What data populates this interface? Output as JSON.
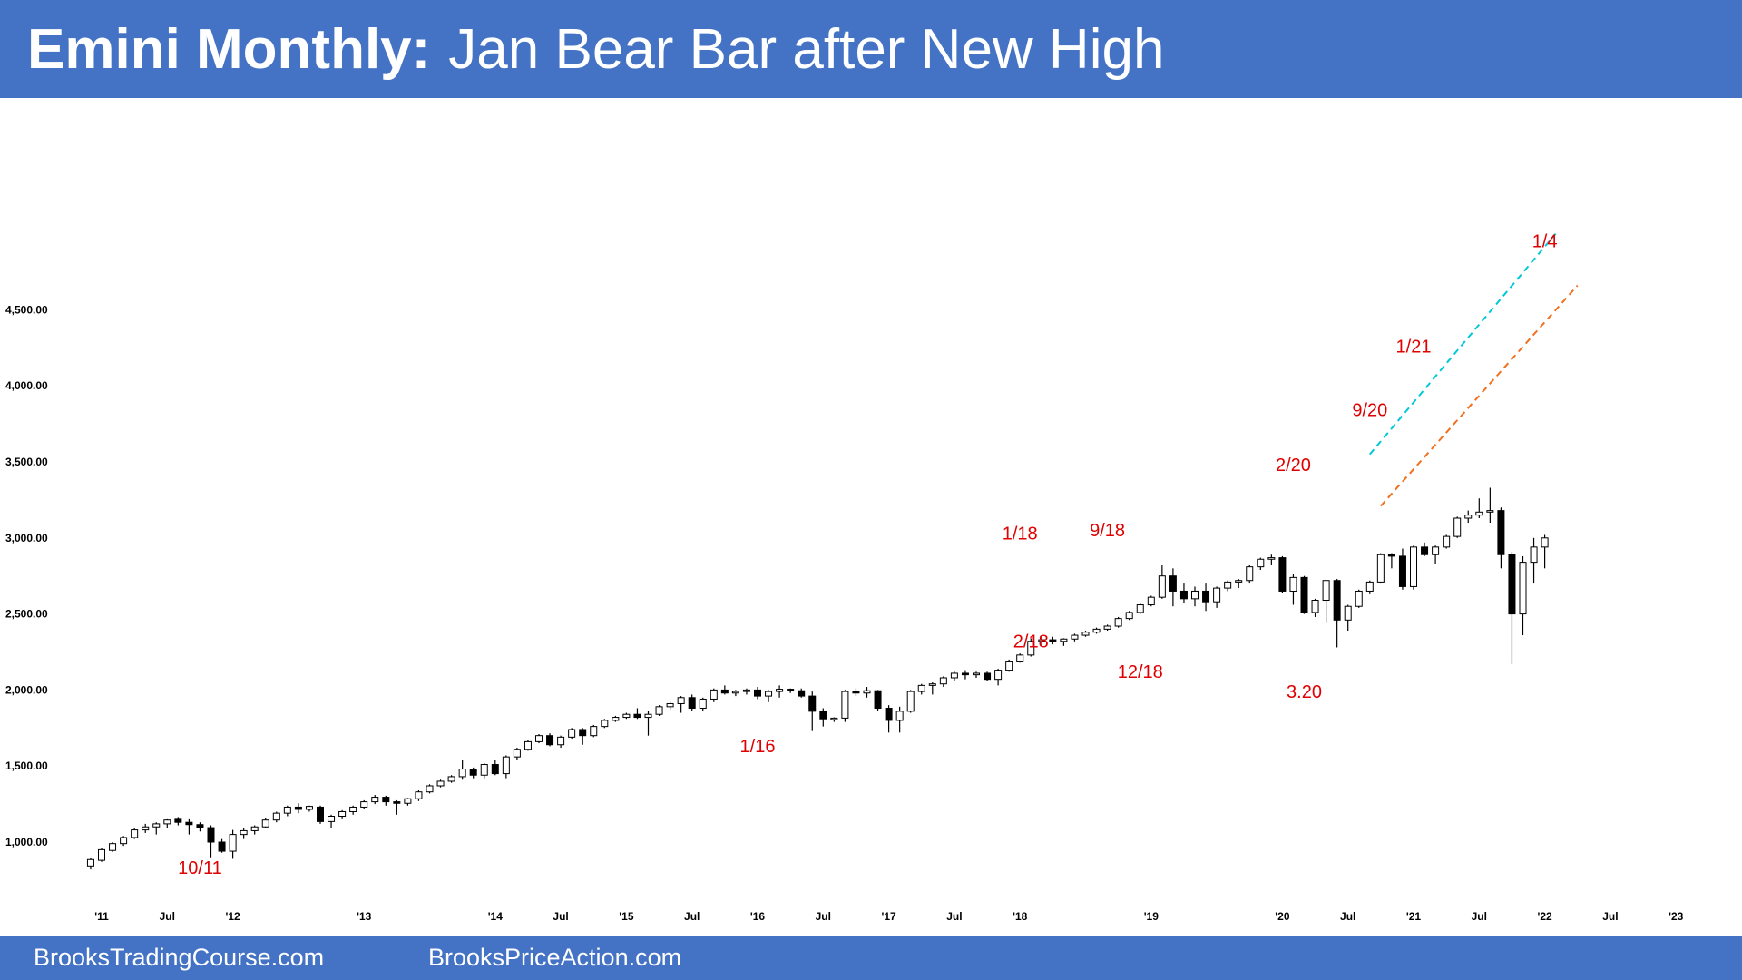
{
  "title": {
    "bold": "Emini Monthly:",
    "sub": "Jan Bear Bar after New High"
  },
  "footer": {
    "left": "BrooksTradingCourse.com",
    "right": "BrooksPriceAction.com"
  },
  "colors": {
    "banner": "#4472c4",
    "annotation": "#e00000",
    "bull_body": "#ffffff",
    "bear_body": "#000000",
    "upper_channel": "#00c8d8",
    "lower_channel": "#f07020"
  },
  "chart_data": {
    "type": "candlestick",
    "title": "Emini Monthly: Jan Bear Bar after New High",
    "x_range": [
      "2010-11",
      "2023-01"
    ],
    "ylim": [
      750,
      4950
    ],
    "y_ticks": [
      {
        "value": 1000,
        "label": "1,000.00"
      },
      {
        "value": 1500,
        "label": "1,500.00"
      },
      {
        "value": 2000,
        "label": "2,000.00"
      },
      {
        "value": 2500,
        "label": "2,500.00"
      },
      {
        "value": 3000,
        "label": "3,000.00"
      },
      {
        "value": 3500,
        "label": "3,500.00"
      },
      {
        "value": 4000,
        "label": "4,000.00"
      },
      {
        "value": 4500,
        "label": "4,500.00"
      }
    ],
    "x_ticks": [
      {
        "date": "2011-01",
        "label": "'11"
      },
      {
        "date": "2011-07",
        "label": "Jul"
      },
      {
        "date": "2012-01",
        "label": "'12"
      },
      {
        "date": "2013-01",
        "label": "'13"
      },
      {
        "date": "2014-01",
        "label": "'14"
      },
      {
        "date": "2014-07",
        "label": "Jul"
      },
      {
        "date": "2015-01",
        "label": "'15"
      },
      {
        "date": "2015-07",
        "label": "Jul"
      },
      {
        "date": "2016-01",
        "label": "'16"
      },
      {
        "date": "2016-07",
        "label": "Jul"
      },
      {
        "date": "2017-01",
        "label": "'17"
      },
      {
        "date": "2017-07",
        "label": "Jul"
      },
      {
        "date": "2018-01",
        "label": "'18"
      },
      {
        "date": "2019-01",
        "label": "'19"
      },
      {
        "date": "2020-01",
        "label": "'20"
      },
      {
        "date": "2020-07",
        "label": "Jul"
      },
      {
        "date": "2021-01",
        "label": "'21"
      },
      {
        "date": "2021-07",
        "label": "Jul"
      },
      {
        "date": "2022-01",
        "label": "'22"
      },
      {
        "date": "2022-07",
        "label": "Jul"
      },
      {
        "date": "2023-01",
        "label": "'23"
      }
    ],
    "annotations": [
      {
        "date": "2011-10",
        "price": 790,
        "text": "10/11"
      },
      {
        "date": "2016-01",
        "price": 1590,
        "text": "1/16"
      },
      {
        "date": "2018-01",
        "price": 2990,
        "text": "1/18"
      },
      {
        "date": "2018-02",
        "price": 2280,
        "text": "2/18"
      },
      {
        "date": "2018-09",
        "price": 3010,
        "text": "9/18"
      },
      {
        "date": "2018-12",
        "price": 2080,
        "text": "12/18"
      },
      {
        "date": "2020-02",
        "price": 3440,
        "text": "2/20"
      },
      {
        "date": "2020-03",
        "price": 1950,
        "text": "3.20"
      },
      {
        "date": "2020-09",
        "price": 3800,
        "text": "9/20"
      },
      {
        "date": "2021-01",
        "price": 4220,
        "text": "1/21"
      },
      {
        "date": "2022-01",
        "price": 4910,
        "text": "1/4"
      }
    ],
    "trend_lines": [
      {
        "name": "upper",
        "from": [
          "2020-09",
          3550
        ],
        "to": [
          "2022-02",
          5000
        ]
      },
      {
        "name": "lower",
        "from": [
          "2020-10",
          3210
        ],
        "to": [
          "2022-04",
          4660
        ]
      }
    ],
    "candles": [
      {
        "date": "2010-12",
        "o": 843,
        "h": 895,
        "l": 820,
        "c": 885
      },
      {
        "date": "2011-01",
        "o": 880,
        "h": 960,
        "l": 870,
        "c": 950
      },
      {
        "date": "2011-02",
        "o": 945,
        "h": 1000,
        "l": 935,
        "c": 990
      },
      {
        "date": "2011-03",
        "o": 990,
        "h": 1040,
        "l": 975,
        "c": 1030
      },
      {
        "date": "2011-04",
        "o": 1030,
        "h": 1090,
        "l": 1020,
        "c": 1080
      },
      {
        "date": "2011-05",
        "o": 1080,
        "h": 1120,
        "l": 1060,
        "c": 1100
      },
      {
        "date": "2011-06",
        "o": 1100,
        "h": 1130,
        "l": 1050,
        "c": 1120
      },
      {
        "date": "2011-07",
        "o": 1120,
        "h": 1150,
        "l": 1090,
        "c": 1145
      },
      {
        "date": "2011-08",
        "o": 1150,
        "h": 1165,
        "l": 1110,
        "c": 1130
      },
      {
        "date": "2011-09",
        "o": 1130,
        "h": 1150,
        "l": 1050,
        "c": 1115
      },
      {
        "date": "2011-10",
        "o": 1115,
        "h": 1130,
        "l": 1070,
        "c": 1095
      },
      {
        "date": "2011-11",
        "o": 1095,
        "h": 1110,
        "l": 900,
        "c": 1000
      },
      {
        "date": "2011-12",
        "o": 1000,
        "h": 1020,
        "l": 930,
        "c": 940
      },
      {
        "date": "2012-01",
        "o": 940,
        "h": 1080,
        "l": 890,
        "c": 1050
      },
      {
        "date": "2012-02",
        "o": 1050,
        "h": 1090,
        "l": 1020,
        "c": 1075
      },
      {
        "date": "2012-03",
        "o": 1075,
        "h": 1110,
        "l": 1050,
        "c": 1100
      },
      {
        "date": "2012-04",
        "o": 1100,
        "h": 1160,
        "l": 1090,
        "c": 1145
      },
      {
        "date": "2012-05",
        "o": 1145,
        "h": 1200,
        "l": 1130,
        "c": 1190
      },
      {
        "date": "2012-06",
        "o": 1190,
        "h": 1240,
        "l": 1170,
        "c": 1230
      },
      {
        "date": "2012-07",
        "o": 1230,
        "h": 1255,
        "l": 1190,
        "c": 1215
      },
      {
        "date": "2012-08",
        "o": 1215,
        "h": 1240,
        "l": 1200,
        "c": 1235
      },
      {
        "date": "2012-09",
        "o": 1230,
        "h": 1240,
        "l": 1120,
        "c": 1135
      },
      {
        "date": "2012-10",
        "o": 1135,
        "h": 1180,
        "l": 1090,
        "c": 1170
      },
      {
        "date": "2012-11",
        "o": 1170,
        "h": 1210,
        "l": 1150,
        "c": 1200
      },
      {
        "date": "2012-12",
        "o": 1200,
        "h": 1240,
        "l": 1180,
        "c": 1230
      },
      {
        "date": "2013-01",
        "o": 1230,
        "h": 1275,
        "l": 1215,
        "c": 1265
      },
      {
        "date": "2013-02",
        "o": 1265,
        "h": 1310,
        "l": 1250,
        "c": 1295
      },
      {
        "date": "2013-03",
        "o": 1295,
        "h": 1305,
        "l": 1240,
        "c": 1265
      },
      {
        "date": "2013-04",
        "o": 1265,
        "h": 1275,
        "l": 1180,
        "c": 1255
      },
      {
        "date": "2013-05",
        "o": 1255,
        "h": 1290,
        "l": 1240,
        "c": 1285
      },
      {
        "date": "2013-06",
        "o": 1285,
        "h": 1340,
        "l": 1270,
        "c": 1330
      },
      {
        "date": "2013-07",
        "o": 1330,
        "h": 1380,
        "l": 1320,
        "c": 1370
      },
      {
        "date": "2013-08",
        "o": 1370,
        "h": 1410,
        "l": 1360,
        "c": 1400
      },
      {
        "date": "2013-09",
        "o": 1400,
        "h": 1440,
        "l": 1390,
        "c": 1430
      },
      {
        "date": "2013-10",
        "o": 1430,
        "h": 1540,
        "l": 1410,
        "c": 1480
      },
      {
        "date": "2013-11",
        "o": 1480,
        "h": 1490,
        "l": 1420,
        "c": 1440
      },
      {
        "date": "2013-12",
        "o": 1440,
        "h": 1520,
        "l": 1420,
        "c": 1510
      },
      {
        "date": "2014-01",
        "o": 1510,
        "h": 1540,
        "l": 1440,
        "c": 1450
      },
      {
        "date": "2014-02",
        "o": 1450,
        "h": 1570,
        "l": 1420,
        "c": 1560
      },
      {
        "date": "2014-03",
        "o": 1560,
        "h": 1620,
        "l": 1540,
        "c": 1610
      },
      {
        "date": "2014-04",
        "o": 1610,
        "h": 1670,
        "l": 1600,
        "c": 1660
      },
      {
        "date": "2014-05",
        "o": 1660,
        "h": 1710,
        "l": 1650,
        "c": 1700
      },
      {
        "date": "2014-06",
        "o": 1700,
        "h": 1715,
        "l": 1630,
        "c": 1640
      },
      {
        "date": "2014-07",
        "o": 1640,
        "h": 1700,
        "l": 1620,
        "c": 1690
      },
      {
        "date": "2014-08",
        "o": 1690,
        "h": 1750,
        "l": 1680,
        "c": 1740
      },
      {
        "date": "2014-09",
        "o": 1740,
        "h": 1750,
        "l": 1640,
        "c": 1700
      },
      {
        "date": "2014-10",
        "o": 1700,
        "h": 1770,
        "l": 1690,
        "c": 1760
      },
      {
        "date": "2014-11",
        "o": 1760,
        "h": 1810,
        "l": 1750,
        "c": 1800
      },
      {
        "date": "2014-12",
        "o": 1800,
        "h": 1830,
        "l": 1790,
        "c": 1820
      },
      {
        "date": "2015-01",
        "o": 1820,
        "h": 1850,
        "l": 1810,
        "c": 1840
      },
      {
        "date": "2015-02",
        "o": 1840,
        "h": 1880,
        "l": 1810,
        "c": 1820
      },
      {
        "date": "2015-03",
        "o": 1820,
        "h": 1860,
        "l": 1700,
        "c": 1840
      },
      {
        "date": "2015-04",
        "o": 1840,
        "h": 1900,
        "l": 1830,
        "c": 1890
      },
      {
        "date": "2015-05",
        "o": 1890,
        "h": 1920,
        "l": 1870,
        "c": 1910
      },
      {
        "date": "2015-06",
        "o": 1910,
        "h": 1960,
        "l": 1850,
        "c": 1950
      },
      {
        "date": "2015-07",
        "o": 1950,
        "h": 1970,
        "l": 1860,
        "c": 1880
      },
      {
        "date": "2015-08",
        "o": 1880,
        "h": 1950,
        "l": 1860,
        "c": 1940
      },
      {
        "date": "2015-09",
        "o": 1940,
        "h": 2010,
        "l": 1920,
        "c": 2000
      },
      {
        "date": "2015-10",
        "o": 2000,
        "h": 2030,
        "l": 1970,
        "c": 1980
      },
      {
        "date": "2015-11",
        "o": 1980,
        "h": 2000,
        "l": 1960,
        "c": 1990
      },
      {
        "date": "2015-12",
        "o": 1990,
        "h": 2010,
        "l": 1970,
        "c": 2000
      },
      {
        "date": "2016-01",
        "o": 2000,
        "h": 2020,
        "l": 1940,
        "c": 1960
      },
      {
        "date": "2016-02",
        "o": 1960,
        "h": 2000,
        "l": 1920,
        "c": 1990
      },
      {
        "date": "2016-03",
        "o": 1990,
        "h": 2030,
        "l": 1950,
        "c": 2005
      },
      {
        "date": "2016-04",
        "o": 2005,
        "h": 2010,
        "l": 1980,
        "c": 1995
      },
      {
        "date": "2016-05",
        "o": 1995,
        "h": 2010,
        "l": 1950,
        "c": 1960
      },
      {
        "date": "2016-06",
        "o": 1960,
        "h": 1990,
        "l": 1730,
        "c": 1860
      },
      {
        "date": "2016-07",
        "o": 1860,
        "h": 1880,
        "l": 1760,
        "c": 1810
      },
      {
        "date": "2016-08",
        "o": 1810,
        "h": 1820,
        "l": 1790,
        "c": 1815
      },
      {
        "date": "2016-09",
        "o": 1815,
        "h": 2000,
        "l": 1790,
        "c": 1990
      },
      {
        "date": "2016-10",
        "o": 1990,
        "h": 2010,
        "l": 1960,
        "c": 1980
      },
      {
        "date": "2016-11",
        "o": 1980,
        "h": 2020,
        "l": 1950,
        "c": 1995
      },
      {
        "date": "2016-12",
        "o": 1995,
        "h": 2000,
        "l": 1860,
        "c": 1880
      },
      {
        "date": "2017-01",
        "o": 1880,
        "h": 1900,
        "l": 1720,
        "c": 1800
      },
      {
        "date": "2017-02",
        "o": 1800,
        "h": 1890,
        "l": 1720,
        "c": 1860
      },
      {
        "date": "2017-03",
        "o": 1860,
        "h": 2000,
        "l": 1850,
        "c": 1990
      },
      {
        "date": "2017-04",
        "o": 1990,
        "h": 2040,
        "l": 1970,
        "c": 2030
      },
      {
        "date": "2017-05",
        "o": 2030,
        "h": 2050,
        "l": 1970,
        "c": 2040
      },
      {
        "date": "2017-06",
        "o": 2040,
        "h": 2090,
        "l": 2020,
        "c": 2080
      },
      {
        "date": "2017-07",
        "o": 2080,
        "h": 2120,
        "l": 2060,
        "c": 2110
      },
      {
        "date": "2017-08",
        "o": 2110,
        "h": 2130,
        "l": 2070,
        "c": 2100
      },
      {
        "date": "2017-09",
        "o": 2100,
        "h": 2120,
        "l": 2080,
        "c": 2110
      },
      {
        "date": "2017-10",
        "o": 2110,
        "h": 2120,
        "l": 2060,
        "c": 2070
      },
      {
        "date": "2017-11",
        "o": 2070,
        "h": 2140,
        "l": 2030,
        "c": 2130
      },
      {
        "date": "2017-12",
        "o": 2130,
        "h": 2200,
        "l": 2120,
        "c": 2190
      },
      {
        "date": "2018-01",
        "o": 2190,
        "h": 2240,
        "l": 2180,
        "c": 2230
      },
      {
        "date": "2018-02",
        "o": 2230,
        "h": 2340,
        "l": 2220,
        "c": 2320
      },
      {
        "date": "2018-03",
        "o": 2320,
        "h": 2350,
        "l": 2290,
        "c": 2330
      },
      {
        "date": "2018-04",
        "o": 2330,
        "h": 2350,
        "l": 2300,
        "c": 2320
      },
      {
        "date": "2018-05",
        "o": 2320,
        "h": 2340,
        "l": 2290,
        "c": 2335
      },
      {
        "date": "2018-06",
        "o": 2335,
        "h": 2370,
        "l": 2320,
        "c": 2360
      },
      {
        "date": "2018-07",
        "o": 2360,
        "h": 2390,
        "l": 2350,
        "c": 2380
      },
      {
        "date": "2018-08",
        "o": 2380,
        "h": 2410,
        "l": 2370,
        "c": 2400
      },
      {
        "date": "2018-09",
        "o": 2400,
        "h": 2430,
        "l": 2390,
        "c": 2420
      },
      {
        "date": "2018-10",
        "o": 2420,
        "h": 2480,
        "l": 2410,
        "c": 2470
      },
      {
        "date": "2018-11",
        "o": 2470,
        "h": 2520,
        "l": 2460,
        "c": 2510
      },
      {
        "date": "2018-12",
        "o": 2510,
        "h": 2570,
        "l": 2500,
        "c": 2560
      },
      {
        "date": "2019-01",
        "o": 2560,
        "h": 2620,
        "l": 2550,
        "c": 2610
      },
      {
        "date": "2019-02",
        "o": 2610,
        "h": 2820,
        "l": 2600,
        "c": 2750
      },
      {
        "date": "2019-03",
        "o": 2750,
        "h": 2800,
        "l": 2550,
        "c": 2650
      },
      {
        "date": "2019-04",
        "o": 2650,
        "h": 2700,
        "l": 2570,
        "c": 2600
      },
      {
        "date": "2019-05",
        "o": 2600,
        "h": 2680,
        "l": 2550,
        "c": 2650
      },
      {
        "date": "2019-06",
        "o": 2650,
        "h": 2700,
        "l": 2520,
        "c": 2580
      },
      {
        "date": "2019-07",
        "o": 2580,
        "h": 2680,
        "l": 2540,
        "c": 2670
      },
      {
        "date": "2019-08",
        "o": 2670,
        "h": 2720,
        "l": 2650,
        "c": 2710
      },
      {
        "date": "2019-09",
        "o": 2710,
        "h": 2730,
        "l": 2670,
        "c": 2720
      },
      {
        "date": "2019-10",
        "o": 2720,
        "h": 2820,
        "l": 2700,
        "c": 2810
      },
      {
        "date": "2019-11",
        "o": 2810,
        "h": 2870,
        "l": 2790,
        "c": 2860
      },
      {
        "date": "2019-12",
        "o": 2860,
        "h": 2890,
        "l": 2820,
        "c": 2870
      },
      {
        "date": "2020-01",
        "o": 2870,
        "h": 2880,
        "l": 2640,
        "c": 2650
      },
      {
        "date": "2020-02",
        "o": 2650,
        "h": 2760,
        "l": 2560,
        "c": 2740
      },
      {
        "date": "2020-03",
        "o": 2740,
        "h": 2750,
        "l": 2500,
        "c": 2510
      },
      {
        "date": "2020-04",
        "o": 2510,
        "h": 2600,
        "l": 2480,
        "c": 2590
      },
      {
        "date": "2020-05",
        "o": 2590,
        "h": 2720,
        "l": 2440,
        "c": 2720
      },
      {
        "date": "2020-06",
        "o": 2720,
        "h": 2730,
        "l": 2280,
        "c": 2460
      },
      {
        "date": "2020-07",
        "o": 2460,
        "h": 2560,
        "l": 2390,
        "c": 2550
      },
      {
        "date": "2020-08",
        "o": 2550,
        "h": 2660,
        "l": 2540,
        "c": 2650
      },
      {
        "date": "2020-09",
        "o": 2650,
        "h": 2720,
        "l": 2630,
        "c": 2710
      },
      {
        "date": "2020-10",
        "o": 2710,
        "h": 2900,
        "l": 2700,
        "c": 2890
      },
      {
        "date": "2020-11",
        "o": 2890,
        "h": 2900,
        "l": 2800,
        "c": 2880
      },
      {
        "date": "2020-12",
        "o": 2880,
        "h": 2930,
        "l": 2660,
        "c": 2680
      },
      {
        "date": "2021-01",
        "o": 2680,
        "h": 2950,
        "l": 2660,
        "c": 2940
      },
      {
        "date": "2021-02",
        "o": 2940,
        "h": 2970,
        "l": 2880,
        "c": 2890
      },
      {
        "date": "2021-03",
        "o": 2890,
        "h": 2950,
        "l": 2830,
        "c": 2940
      },
      {
        "date": "2021-04",
        "o": 2940,
        "h": 3020,
        "l": 2930,
        "c": 3010
      },
      {
        "date": "2021-05",
        "o": 3010,
        "h": 3140,
        "l": 3000,
        "c": 3130
      },
      {
        "date": "2021-06",
        "o": 3130,
        "h": 3180,
        "l": 3100,
        "c": 3150
      },
      {
        "date": "2021-07",
        "o": 3150,
        "h": 3260,
        "l": 3130,
        "c": 3170
      },
      {
        "date": "2021-08",
        "o": 3170,
        "h": 3330,
        "l": 3100,
        "c": 3180
      },
      {
        "date": "2021-09",
        "o": 3180,
        "h": 3200,
        "l": 2800,
        "c": 2890
      },
      {
        "date": "2021-10",
        "o": 2890,
        "h": 2910,
        "l": 2170,
        "c": 2500
      },
      {
        "date": "2021-11",
        "o": 2500,
        "h": 2880,
        "l": 2360,
        "c": 2840
      },
      {
        "date": "2021-12",
        "o": 2840,
        "h": 3000,
        "l": 2700,
        "c": 2940
      },
      {
        "date": "2022-01",
        "o": 2940,
        "h": 3020,
        "l": 2800,
        "c": 3000
      }
    ]
  }
}
